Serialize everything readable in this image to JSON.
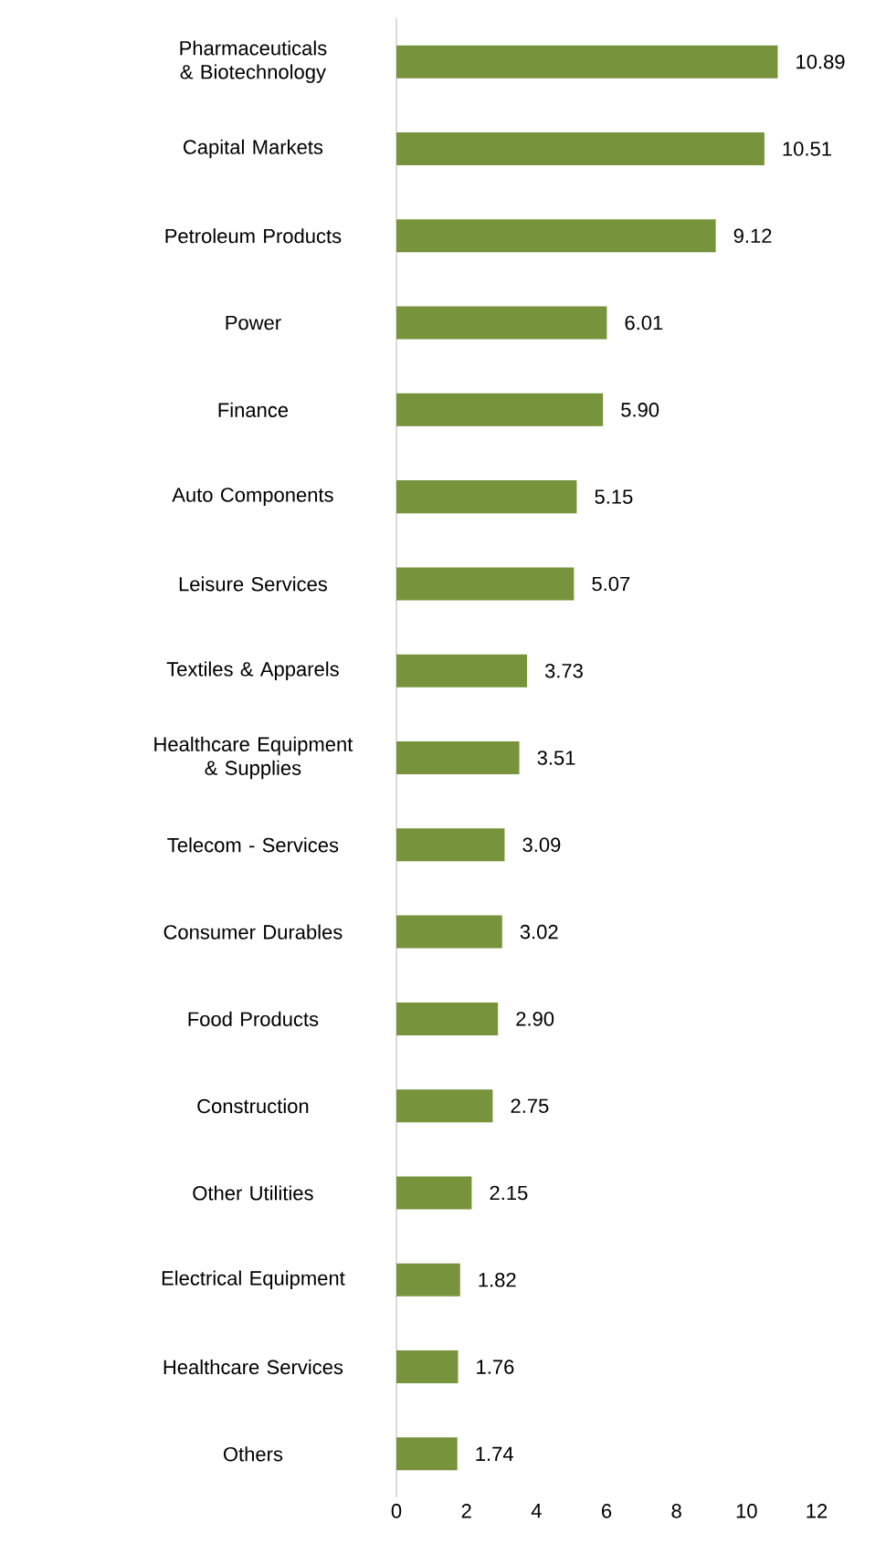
{
  "chart_data": {
    "type": "bar",
    "orientation": "horizontal",
    "color": "#77933c",
    "categories": [
      "Pharmaceuticals & Biotechnology",
      "Capital Markets",
      "Petroleum Products",
      "Power",
      "Finance",
      "Auto Components",
      "Leisure Services",
      "Textiles & Apparels",
      "Healthcare Equipment & Supplies",
      "Telecom - Services",
      "Consumer Durables",
      "Food Products",
      "Construction",
      "Other Utilities",
      "Electrical Equipment",
      "Healthcare Services",
      "Others"
    ],
    "values": [
      10.89,
      10.51,
      9.12,
      6.01,
      5.9,
      5.15,
      5.07,
      3.73,
      3.51,
      3.09,
      3.02,
      2.9,
      2.75,
      2.15,
      1.82,
      1.76,
      1.74
    ],
    "value_labels": [
      "10.89",
      "10.51",
      "9.12",
      "6.01",
      "5.90",
      "5.15",
      "5.07",
      "3.73",
      "3.51",
      "3.09",
      "3.02",
      "2.90",
      "2.75",
      "2.15",
      "1.82",
      "1.76",
      "1.74"
    ],
    "xlim": [
      0,
      12
    ],
    "xticks": [
      0,
      2,
      4,
      6,
      8,
      10,
      12
    ],
    "grid": false
  }
}
